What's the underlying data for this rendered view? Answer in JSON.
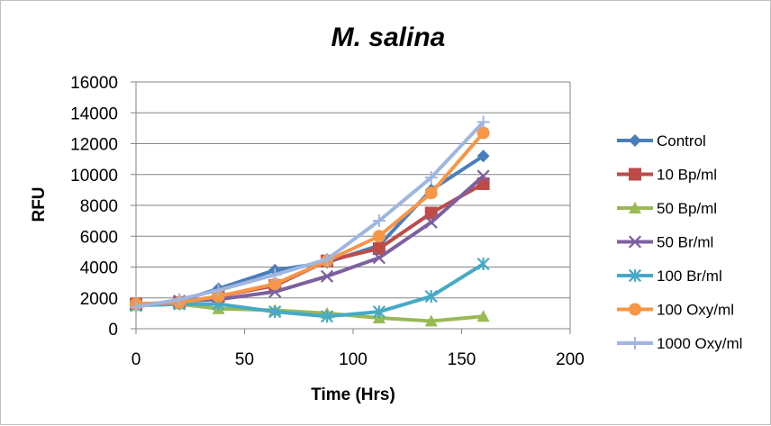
{
  "chart_data": {
    "type": "line",
    "title": "M. salina",
    "xlabel": "Time (Hrs)",
    "ylabel": "RFU",
    "xlim": [
      0,
      200
    ],
    "ylim": [
      0,
      16000
    ],
    "x_ticks": [
      "0",
      "50",
      "100",
      "150",
      "200"
    ],
    "y_ticks": [
      "0",
      "2000",
      "4000",
      "6000",
      "8000",
      "10000",
      "12000",
      "14000",
      "16000"
    ],
    "grid": "horizontal",
    "legend_position": "right",
    "x": [
      0,
      20,
      38,
      64,
      88,
      112,
      136,
      160
    ],
    "series": [
      {
        "name": "Control",
        "color": "#4a7ebb",
        "marker": "diamond",
        "values": [
          1500,
          1800,
          2600,
          3800,
          4300,
          5400,
          9000,
          11200
        ]
      },
      {
        "name": "10 Bp/ml",
        "color": "#be4b48",
        "marker": "square",
        "values": [
          1600,
          1700,
          2100,
          2800,
          4400,
          5200,
          7500,
          9400
        ]
      },
      {
        "name": "50 Bp/ml",
        "color": "#98b954",
        "marker": "triangle",
        "values": [
          1500,
          1600,
          1300,
          1200,
          1000,
          700,
          500,
          800
        ]
      },
      {
        "name": "50 Br/ml",
        "color": "#7d60a0",
        "marker": "x",
        "values": [
          1500,
          1800,
          1900,
          2400,
          3400,
          4600,
          6900,
          9900
        ]
      },
      {
        "name": "100 Br/ml",
        "color": "#46aac5",
        "marker": "star",
        "values": [
          1500,
          1600,
          1600,
          1100,
          800,
          1100,
          2100,
          4200
        ]
      },
      {
        "name": "100 Oxy/ml",
        "color": "#f79646",
        "marker": "circle",
        "values": [
          1600,
          1700,
          2100,
          2900,
          4400,
          6000,
          8800,
          12700
        ]
      },
      {
        "name": "1000 Oxy/ml",
        "color": "#9eb6e0",
        "marker": "plus",
        "values": [
          1400,
          1900,
          2500,
          3500,
          4500,
          7000,
          9800,
          13400
        ]
      }
    ]
  }
}
